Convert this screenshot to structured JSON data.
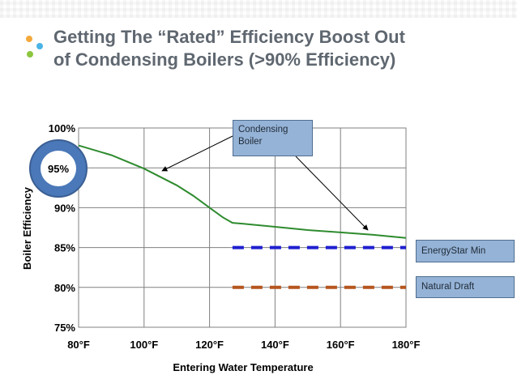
{
  "slide": {
    "title_line1": "Getting The “Rated” Efficiency Boost Out",
    "title_line2": "of Condensing Boilers (>90% Efficiency)",
    "accent_colors": [
      "#f4a93c",
      "#4ab3e6",
      "#8cc63f"
    ]
  },
  "chart_data": {
    "type": "line",
    "xlabel": "Entering Water Temperature",
    "ylabel": "Boiler Efficiency",
    "xlim": [
      80,
      180
    ],
    "ylim": [
      75,
      100
    ],
    "x_ticks": [
      "80°F",
      "100°F",
      "120°F",
      "140°F",
      "160°F",
      "180°F"
    ],
    "y_ticks": [
      "75%",
      "80%",
      "85%",
      "90%",
      "95%",
      "100%"
    ],
    "grid": true,
    "series": [
      {
        "name": "Condensing Boiler",
        "color": "#2e8b2e",
        "style": "solid",
        "x": [
          80,
          90,
          100,
          110,
          115,
          120,
          124,
          127,
          130,
          140,
          150,
          160,
          170,
          180
        ],
        "y": [
          97.8,
          96.6,
          94.9,
          92.8,
          91.5,
          90.0,
          88.8,
          88.1,
          88.0,
          87.6,
          87.2,
          86.9,
          86.6,
          86.2
        ]
      },
      {
        "name": "EnergyStar Min",
        "color": "#1f1fd0",
        "style": "dashed",
        "x": [
          127,
          180
        ],
        "y": [
          85,
          85
        ]
      },
      {
        "name": "Natural Draft",
        "color": "#b5551d",
        "style": "dashed",
        "x": [
          127,
          180
        ],
        "y": [
          80,
          80
        ]
      }
    ],
    "callouts": {
      "condensing": "Condensing\nBoiler",
      "energystar": "EnergyStar Min",
      "natural": "Natural Draft"
    },
    "highlight": {
      "label": "95%",
      "color": "#4a78b8"
    }
  }
}
